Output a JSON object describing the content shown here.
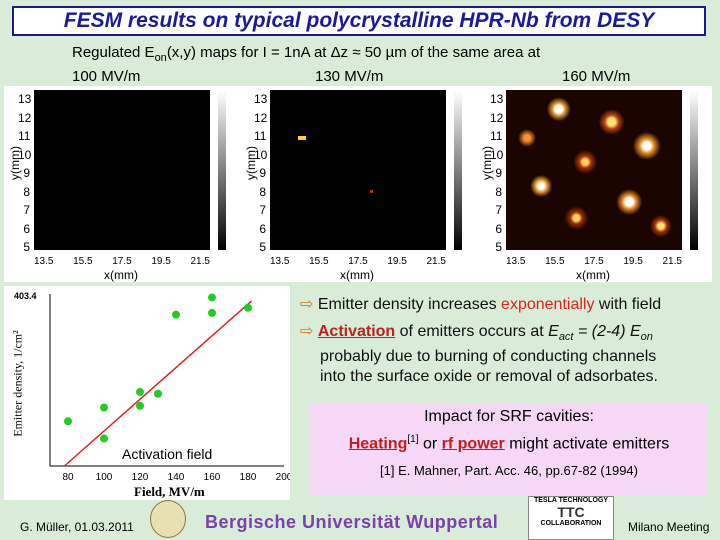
{
  "title": "FESM results on typical polycrystalline HPR-Nb from DESY",
  "subtitle": {
    "prefix": "Regulated E",
    "sub": "on",
    "rest": "(x,y) maps for  I = 1nA  at  Δz ≈ 50 µm  of the same area at"
  },
  "map_titles": [
    "100 MV/m",
    "130 MV/m",
    "160 MV/m"
  ],
  "maps": {
    "x_label": "x(mm)",
    "y_label": "y(mm)",
    "x_ticks": [
      "13.5",
      "15.5",
      "17.5",
      "19.5",
      "21.5"
    ],
    "y_ticks": [
      "13",
      "12",
      "11",
      "10",
      "9",
      "8",
      "7",
      "6",
      "5"
    ]
  },
  "chart_data": {
    "type": "scatter",
    "xlabel": "Field, MV/m",
    "ylabel": "Emitter density, 1/cm²",
    "x_ticks": [
      "80",
      "100",
      "120",
      "140",
      "160",
      "180",
      "200"
    ],
    "xlim": [
      70,
      200
    ],
    "y_scale": "log",
    "top_tick_label": "403.4",
    "annotation": "Activation field",
    "points": [
      {
        "x": 80,
        "y": 0.26
      },
      {
        "x": 100,
        "y": 0.34
      },
      {
        "x": 100,
        "y": 0.16
      },
      {
        "x": 120,
        "y": 0.43
      },
      {
        "x": 120,
        "y": 0.35
      },
      {
        "x": 130,
        "y": 0.42
      },
      {
        "x": 140,
        "y": 0.88
      },
      {
        "x": 160,
        "y": 0.98
      },
      {
        "x": 160,
        "y": 0.89
      },
      {
        "x": 180,
        "y": 0.92
      }
    ],
    "fit_line": [
      {
        "x": 78,
        "y": 0.0
      },
      {
        "x": 182,
        "y": 0.96
      }
    ],
    "point_color": "#22cc22",
    "line_color": "#dd2222"
  },
  "bullets": {
    "b1_a": "Emitter density increases ",
    "b1_red": "exponentially",
    "b1_b": " with field",
    "b2_hl": "Activation",
    "b2_a": " of emitters occurs at ",
    "b2_eact": "E",
    "b2_eact_sub": "act",
    "b2_b": " = (2-4) ",
    "b2_eon": "E",
    "b2_eon_sub": "on",
    "b2_line2": "probably due to burning of conducting channels",
    "b2_line3": "into the surface oxide or removal of adsorbates."
  },
  "impact": {
    "heading": "Impact for SRF cavities:",
    "heating": "Heating",
    "ref_mark": "[1]",
    "mid": " or ",
    "rf_power": "rf power",
    "tail": " might activate emitters",
    "ref": "[1] E. Mahner, Part. Acc. 46, pp.67-82 (1994)"
  },
  "footer": {
    "author_date": "G. Müller, 01.03.2011",
    "university": "Bergische Universität Wuppertal",
    "ttc_top": "TESLA TECHNOLOGY",
    "ttc_mid": "TTC",
    "ttc_bottom": "COLLABORATION",
    "meeting": "Milano Meeting"
  }
}
